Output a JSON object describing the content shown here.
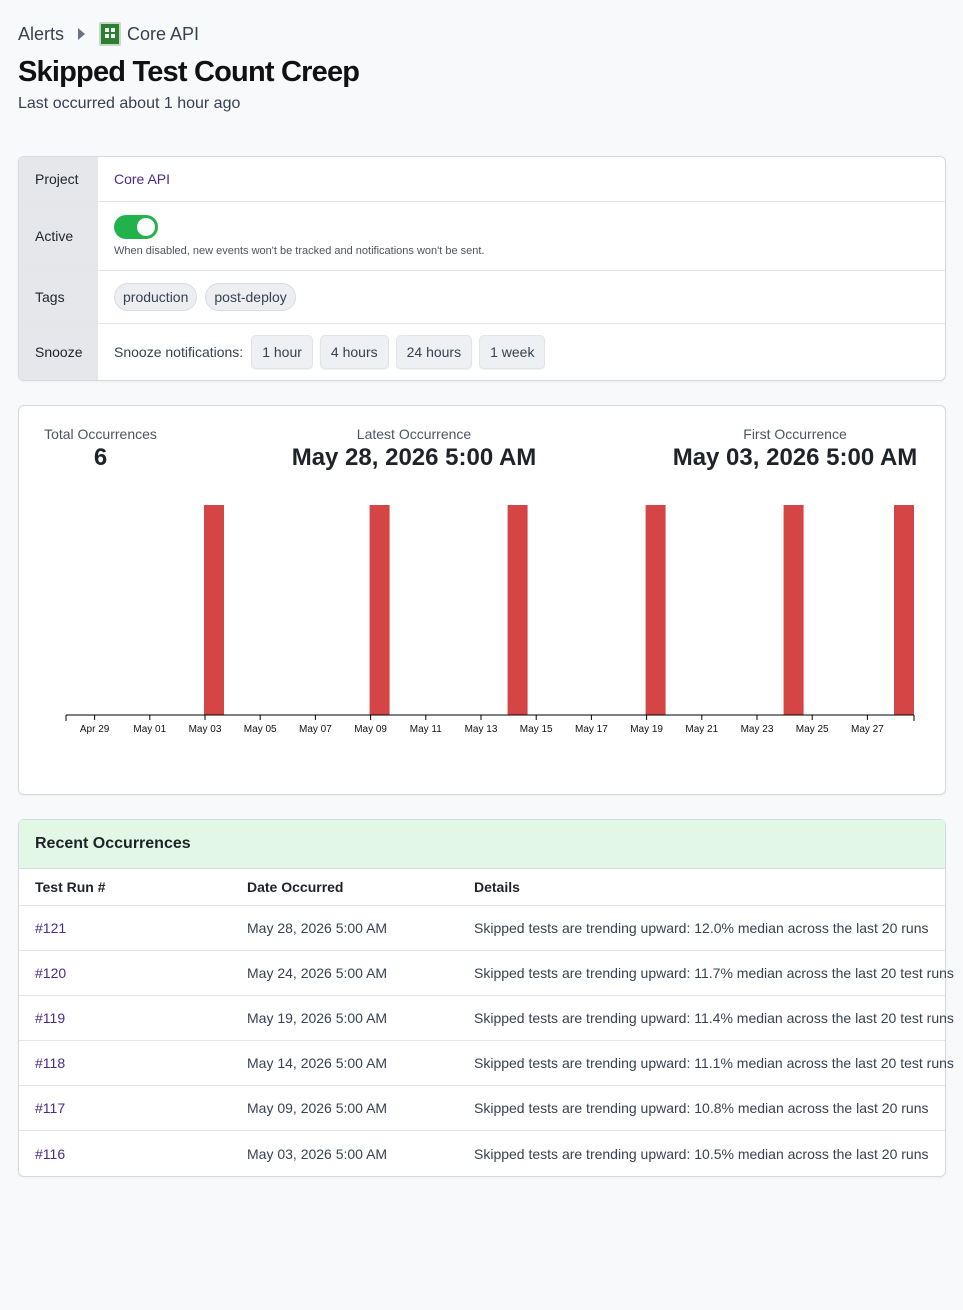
{
  "breadcrumb": {
    "root": "Alerts",
    "project": "Core API"
  },
  "title": "Skipped Test Count Creep",
  "subtitle": "Last occurred about 1 hour ago",
  "properties": {
    "project_label": "Project",
    "project_value": "Core API",
    "active_label": "Active",
    "active_on": true,
    "active_hint": "When disabled, new events won't be tracked and notifications won't be sent.",
    "tags_label": "Tags",
    "tags": [
      "production",
      "post-deploy"
    ],
    "snooze_label": "Snooze",
    "snooze_prompt": "Snooze notifications:",
    "snooze_options": [
      "1 hour",
      "4 hours",
      "24 hours",
      "1 week"
    ]
  },
  "stats": {
    "total_label": "Total Occurrences",
    "total_value": "6",
    "latest_label": "Latest Occurrence",
    "latest_value": "May 28, 2026 5:00 AM",
    "first_label": "First Occurrence",
    "first_value": "May 03, 2026 5:00 AM"
  },
  "chart_data": {
    "type": "bar",
    "bar_color": "#d64545",
    "x_start": "2026-04-28",
    "x_end": "2026-05-28",
    "tick_labels": [
      "Apr 29",
      "May 01",
      "May 03",
      "May 05",
      "May 07",
      "May 09",
      "May 11",
      "May 13",
      "May 15",
      "May 17",
      "May 19",
      "May 21",
      "May 23",
      "May 25",
      "May 27"
    ],
    "tick_dates": [
      "2026-04-29",
      "2026-05-01",
      "2026-05-03",
      "2026-05-05",
      "2026-05-07",
      "2026-05-09",
      "2026-05-11",
      "2026-05-13",
      "2026-05-15",
      "2026-05-17",
      "2026-05-19",
      "2026-05-21",
      "2026-05-23",
      "2026-05-25",
      "2026-05-27"
    ],
    "bars": [
      {
        "date": "2026-05-03",
        "count": 1
      },
      {
        "date": "2026-05-09",
        "count": 1
      },
      {
        "date": "2026-05-14",
        "count": 1
      },
      {
        "date": "2026-05-19",
        "count": 1
      },
      {
        "date": "2026-05-24",
        "count": 1
      },
      {
        "date": "2026-05-28",
        "count": 1
      }
    ]
  },
  "recent": {
    "header": "Recent Occurrences",
    "columns": [
      "Test Run #",
      "Date Occurred",
      "Details"
    ],
    "rows": [
      {
        "run": "#121",
        "date": "May 28, 2026 5:00 AM",
        "details": "Skipped tests are trending upward: 12.0% median across the last 20 runs"
      },
      {
        "run": "#120",
        "date": "May 24, 2026 5:00 AM",
        "details": "Skipped tests are trending upward: 11.7% median across the last 20 test runs"
      },
      {
        "run": "#119",
        "date": "May 19, 2026 5:00 AM",
        "details": "Skipped tests are trending upward: 11.4% median across the last 20 test runs"
      },
      {
        "run": "#118",
        "date": "May 14, 2026 5:00 AM",
        "details": "Skipped tests are trending upward: 11.1% median across the last 20 test runs"
      },
      {
        "run": "#117",
        "date": "May 09, 2026 5:00 AM",
        "details": "Skipped tests are trending upward: 10.8% median across the last 20 runs"
      },
      {
        "run": "#116",
        "date": "May 03, 2026 5:00 AM",
        "details": "Skipped tests are trending upward: 10.5% median across the last 20 runs"
      }
    ]
  }
}
